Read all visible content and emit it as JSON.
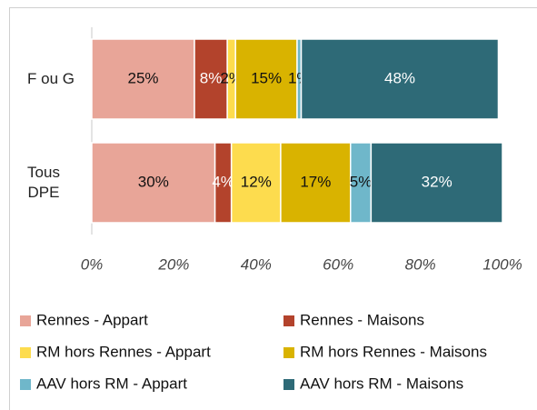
{
  "chart_data": {
    "type": "stacked_barh",
    "categories": [
      "F ou G",
      "Tous DPE"
    ],
    "series": [
      {
        "name": "Rennes - Appart",
        "color": "#e8a598",
        "values": [
          25,
          30
        ],
        "value_labels": [
          "25%",
          "30%"
        ]
      },
      {
        "name": "Rennes - Maisons",
        "color": "#b3432c",
        "values": [
          8,
          4
        ],
        "value_labels": [
          "8%",
          "4%"
        ]
      },
      {
        "name": "RM hors Rennes - Appart",
        "color": "#fddc4e",
        "values": [
          2,
          12
        ],
        "value_labels": [
          "2%",
          "12%"
        ]
      },
      {
        "name": "RM hors Rennes - Maisons",
        "color": "#d9b300",
        "values": [
          15,
          17
        ],
        "value_labels": [
          "15%",
          "17%"
        ]
      },
      {
        "name": "AAV hors RM - Appart",
        "color": "#6fb7ca",
        "values": [
          1,
          5
        ],
        "value_labels": [
          "1%",
          "5%"
        ]
      },
      {
        "name": "AAV hors RM - Maisons",
        "color": "#2e6a77",
        "values": [
          48,
          32
        ],
        "value_labels": [
          "48%",
          "32%"
        ]
      }
    ],
    "xlim": [
      0,
      100
    ],
    "xticks": [
      {
        "value": 0,
        "label": "0%"
      },
      {
        "value": 20,
        "label": "20%"
      },
      {
        "value": 40,
        "label": "40%"
      },
      {
        "value": 60,
        "label": "60%"
      },
      {
        "value": 80,
        "label": "80%"
      },
      {
        "value": 100,
        "label": "100%"
      }
    ],
    "legend": "bottom"
  }
}
